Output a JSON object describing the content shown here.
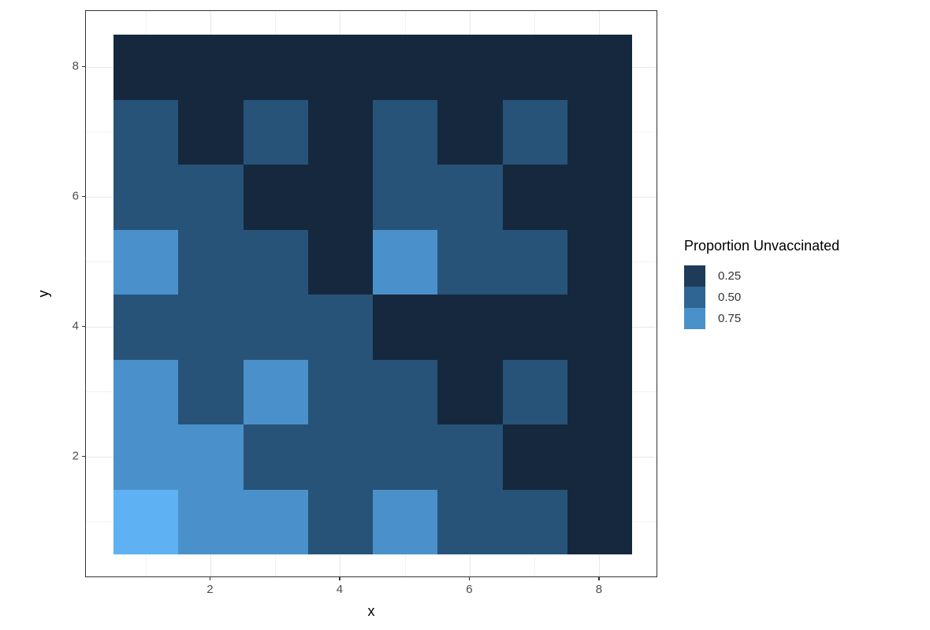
{
  "axes": {
    "x_title": "x",
    "y_title": "y",
    "x_tick_labels": [
      "2",
      "4",
      "6",
      "8"
    ],
    "y_tick_labels": [
      "2",
      "4",
      "6",
      "8"
    ]
  },
  "legend": {
    "title": "Proportion Unvaccinated",
    "items": [
      {
        "label": "0.25",
        "color": "#1E3C59"
      },
      {
        "label": "0.50",
        "color": "#2E6593"
      },
      {
        "label": "0.75",
        "color": "#4A91CB"
      }
    ]
  },
  "colors": {
    "background": "#FFFFFF",
    "panel_border": "#333333",
    "grid_major": "#E8E8E8",
    "grid_minor": "#F2F2F2",
    "tick_label": "#4D4D4D",
    "tile_dark": "#16293F",
    "tile_medium": "#27537A",
    "tile_light": "#4A91CB",
    "tile_bright": "#56AFF5"
  },
  "chart_data": {
    "type": "heatmap",
    "title": "",
    "xlabel": "x",
    "ylabel": "y",
    "legend_title": "Proportion Unvaccinated",
    "legend_position": "right",
    "grid": true,
    "x_domain": [
      0.5,
      8.5
    ],
    "y_domain": [
      0.5,
      8.5
    ],
    "x_ticks": [
      2,
      4,
      6,
      8
    ],
    "y_ticks": [
      2,
      4,
      6,
      8
    ],
    "x_minor_ticks": [
      1,
      3,
      5,
      7
    ],
    "y_minor_ticks": [
      1,
      3,
      5,
      7
    ],
    "cols_x": [
      1,
      2,
      3,
      4,
      5,
      6,
      7,
      8
    ],
    "rows_y_top_to_bottom": [
      8,
      7,
      6,
      5,
      4,
      3,
      2,
      1
    ],
    "values_rows_top_to_bottom": [
      [
        0.13,
        0.13,
        0.13,
        0.13,
        0.13,
        0.13,
        0.13,
        0.13
      ],
      [
        0.39,
        0.13,
        0.39,
        0.13,
        0.39,
        0.13,
        0.39,
        0.13
      ],
      [
        0.39,
        0.39,
        0.13,
        0.13,
        0.39,
        0.39,
        0.13,
        0.13
      ],
      [
        0.75,
        0.39,
        0.39,
        0.13,
        0.75,
        0.39,
        0.39,
        0.13
      ],
      [
        0.39,
        0.39,
        0.39,
        0.39,
        0.13,
        0.13,
        0.13,
        0.13
      ],
      [
        0.75,
        0.39,
        0.75,
        0.39,
        0.39,
        0.13,
        0.39,
        0.13
      ],
      [
        0.75,
        0.75,
        0.39,
        0.39,
        0.39,
        0.39,
        0.13,
        0.13
      ],
      [
        0.93,
        0.75,
        0.75,
        0.39,
        0.75,
        0.39,
        0.39,
        0.13
      ]
    ],
    "color_scale": {
      "stops": [
        {
          "value": 0.25,
          "color": "#1E3C59"
        },
        {
          "value": 0.5,
          "color": "#2E6593"
        },
        {
          "value": 0.75,
          "color": "#4A91CB"
        }
      ]
    },
    "legend_entries": [
      {
        "label": "0.25",
        "value": 0.25
      },
      {
        "label": "0.50",
        "value": 0.5
      },
      {
        "label": "0.75",
        "value": 0.75
      }
    ]
  }
}
